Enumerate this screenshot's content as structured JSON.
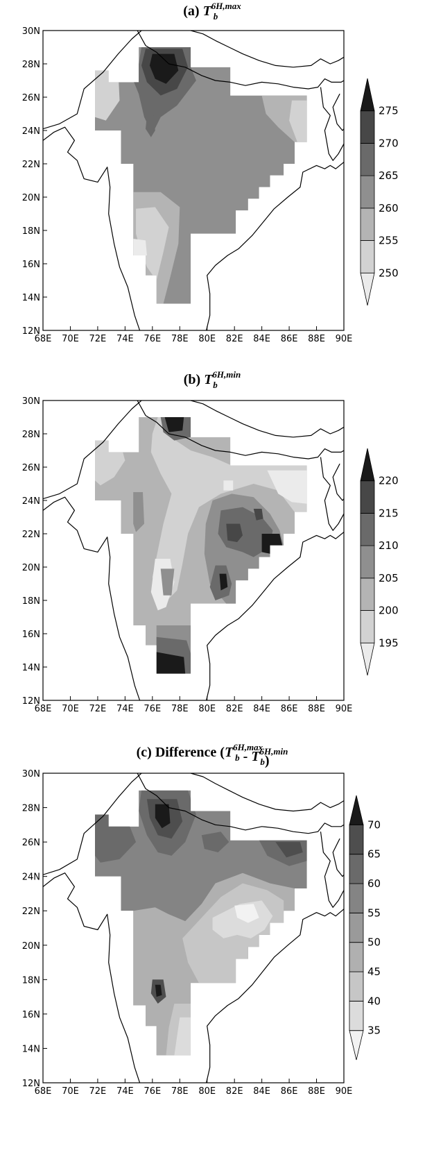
{
  "panels": [
    {
      "id": "a",
      "title_prefix": "(a) ",
      "title_var": "T",
      "title_sub": "b",
      "title_sup": "6H,max",
      "title_suffix": "",
      "colorbar_levels": [
        "250",
        "255",
        "260",
        "265",
        "270",
        "275"
      ],
      "colorbar_colors": [
        "#ebebeb",
        "#d2d2d2",
        "#b4b4b4",
        "#8f8f8f",
        "#6a6a6a",
        "#474747",
        "#1a1a1a"
      ]
    },
    {
      "id": "b",
      "title_prefix": "(b) ",
      "title_var": "T",
      "title_sub": "b",
      "title_sup": "6H,min",
      "title_suffix": "",
      "colorbar_levels": [
        "195",
        "200",
        "205",
        "210",
        "215",
        "220"
      ],
      "colorbar_colors": [
        "#ebebeb",
        "#d2d2d2",
        "#b4b4b4",
        "#8f8f8f",
        "#6a6a6a",
        "#474747",
        "#1a1a1a"
      ]
    },
    {
      "id": "c",
      "title_prefix": "(c) Difference (",
      "title_var": "T",
      "title_sub": "b",
      "title_sup": "6H,max",
      "title_mid": " - ",
      "title_var2": "T",
      "title_sub2": "b",
      "title_sup2": "6H,min",
      "title_suffix": ")",
      "colorbar_levels": [
        "35",
        "40",
        "45",
        "50",
        "55",
        "60",
        "65",
        "70"
      ],
      "colorbar_colors": [
        "#f2f2f2",
        "#dcdcdc",
        "#c6c6c6",
        "#b0b0b0",
        "#9a9a9a",
        "#848484",
        "#6a6a6a",
        "#4e4e4e",
        "#1a1a1a"
      ]
    }
  ],
  "lat_ticks": [
    "12N",
    "14N",
    "16N",
    "18N",
    "20N",
    "22N",
    "24N",
    "26N",
    "28N",
    "30N"
  ],
  "lon_ticks": [
    "68E",
    "70E",
    "72E",
    "74E",
    "76E",
    "78E",
    "80E",
    "82E",
    "84E",
    "86E",
    "88E",
    "90E"
  ]
}
